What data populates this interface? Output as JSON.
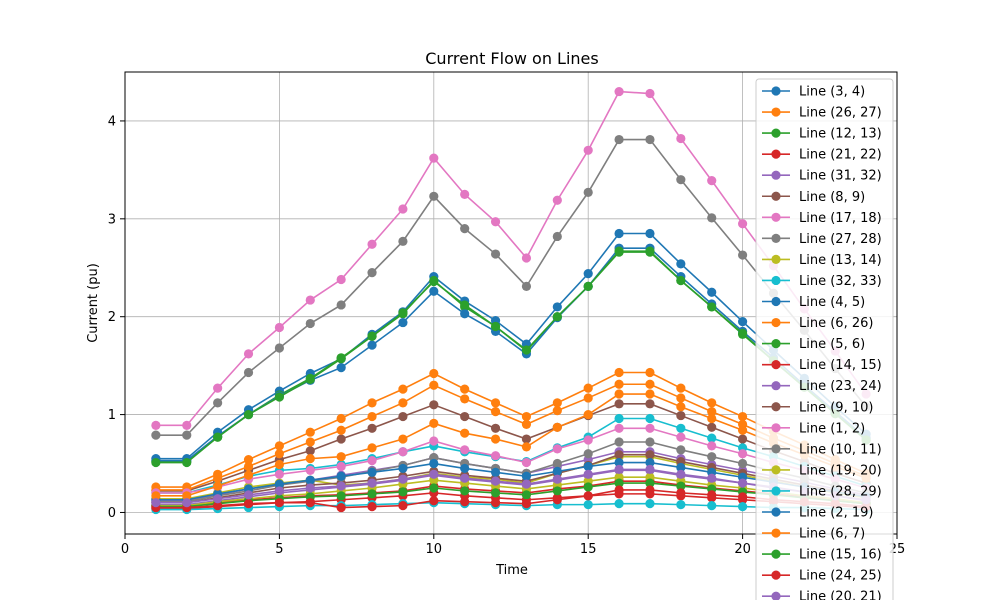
{
  "chart_data": {
    "type": "line",
    "title": "Current Flow on Lines",
    "xlabel": "Time",
    "ylabel": "Current (pu)",
    "xlim": [
      0,
      25
    ],
    "ylim": [
      -0.22,
      4.5
    ],
    "xticks": [
      0,
      5,
      10,
      15,
      20,
      25
    ],
    "yticks": [
      0,
      1,
      2,
      3,
      4
    ],
    "grid": true,
    "legend": "right",
    "x": [
      1,
      2,
      3,
      4,
      5,
      6,
      7,
      8,
      9,
      10,
      11,
      12,
      13,
      14,
      15,
      16,
      17,
      18,
      19,
      20,
      21,
      22,
      23,
      24
    ],
    "series": [
      {
        "name": "Line (3, 4)",
        "color": "#1f77b4",
        "values": [
          0.55,
          0.55,
          0.82,
          1.05,
          1.24,
          1.42,
          1.57,
          1.82,
          2.05,
          2.41,
          2.16,
          1.96,
          1.72,
          2.1,
          2.44,
          2.85,
          2.85,
          2.54,
          2.25,
          1.95,
          1.66,
          1.37,
          1.08,
          0.8
        ]
      },
      {
        "name": "Line (26, 27)",
        "color": "#ff7f0e",
        "values": [
          0.26,
          0.26,
          0.39,
          0.54,
          0.68,
          0.82,
          0.96,
          1.12,
          1.26,
          1.42,
          1.26,
          1.12,
          0.98,
          1.12,
          1.27,
          1.43,
          1.43,
          1.27,
          1.12,
          0.98,
          0.83,
          0.69,
          0.54,
          0.4
        ]
      },
      {
        "name": "Line (12, 13)",
        "color": "#2ca02c",
        "values": [
          0.52,
          0.52,
          0.77,
          1.0,
          1.2,
          1.37,
          1.58,
          1.8,
          2.03,
          2.37,
          2.1,
          1.9,
          1.65,
          2.0,
          2.31,
          2.66,
          2.66,
          2.37,
          2.1,
          1.82,
          1.55,
          1.28,
          1.01,
          0.74
        ]
      },
      {
        "name": "Line (21, 22)",
        "color": "#d62728",
        "values": [
          0.04,
          0.04,
          0.06,
          0.08,
          0.1,
          0.11,
          0.13,
          0.15,
          0.17,
          0.2,
          0.17,
          0.15,
          0.13,
          0.15,
          0.17,
          0.19,
          0.19,
          0.17,
          0.15,
          0.13,
          0.11,
          0.09,
          0.07,
          0.05
        ]
      },
      {
        "name": "Line (31, 32)",
        "color": "#9467bd",
        "values": [
          0.12,
          0.12,
          0.18,
          0.24,
          0.29,
          0.33,
          0.38,
          0.43,
          0.48,
          0.56,
          0.5,
          0.45,
          0.4,
          0.47,
          0.54,
          0.62,
          0.62,
          0.55,
          0.49,
          0.43,
          0.37,
          0.31,
          0.24,
          0.18
        ]
      },
      {
        "name": "Line (8, 9)",
        "color": "#8c564b",
        "values": [
          0.22,
          0.22,
          0.32,
          0.43,
          0.54,
          0.63,
          0.75,
          0.86,
          0.98,
          1.1,
          0.98,
          0.86,
          0.75,
          0.87,
          0.99,
          1.11,
          1.11,
          0.99,
          0.87,
          0.75,
          0.63,
          0.52,
          0.4,
          0.3
        ]
      },
      {
        "name": "Line (17, 18)",
        "color": "#e377c2",
        "values": [
          0.89,
          0.89,
          1.27,
          1.62,
          1.89,
          2.17,
          2.38,
          2.74,
          3.1,
          3.62,
          3.25,
          2.97,
          2.6,
          3.19,
          3.7,
          4.3,
          4.28,
          3.82,
          3.39,
          2.95,
          2.52,
          2.08,
          1.65,
          1.21
        ]
      },
      {
        "name": "Line (27, 28)",
        "color": "#7f7f7f",
        "values": [
          0.79,
          0.79,
          1.12,
          1.43,
          1.68,
          1.93,
          2.12,
          2.45,
          2.77,
          3.23,
          2.9,
          2.64,
          2.31,
          2.82,
          3.27,
          3.81,
          3.81,
          3.4,
          3.01,
          2.63,
          2.24,
          1.86,
          1.47,
          1.08
        ]
      },
      {
        "name": "Line (13, 14)",
        "color": "#bcbd22",
        "values": [
          0.14,
          0.14,
          0.2,
          0.26,
          0.3,
          0.33,
          0.28,
          0.3,
          0.34,
          0.4,
          0.36,
          0.34,
          0.3,
          0.4,
          0.48,
          0.57,
          0.57,
          0.5,
          0.44,
          0.38,
          0.32,
          0.26,
          0.2,
          0.15
        ]
      },
      {
        "name": "Line (32, 33)",
        "color": "#17becf",
        "values": [
          0.2,
          0.2,
          0.28,
          0.37,
          0.43,
          0.45,
          0.49,
          0.55,
          0.62,
          0.68,
          0.62,
          0.57,
          0.52,
          0.66,
          0.77,
          0.96,
          0.96,
          0.86,
          0.76,
          0.66,
          0.57,
          0.47,
          0.37,
          0.27
        ]
      },
      {
        "name": "Line (4, 5)",
        "color": "#1f77b4",
        "values": [
          0.53,
          0.53,
          0.78,
          1.0,
          1.19,
          1.35,
          1.48,
          1.71,
          1.94,
          2.26,
          2.03,
          1.85,
          1.62,
          1.99,
          2.31,
          2.7,
          2.7,
          2.41,
          2.13,
          1.85,
          1.58,
          1.3,
          1.03,
          0.76
        ]
      },
      {
        "name": "Line (6, 26)",
        "color": "#ff7f0e",
        "values": [
          0.23,
          0.23,
          0.35,
          0.47,
          0.6,
          0.72,
          0.84,
          0.98,
          1.12,
          1.3,
          1.16,
          1.03,
          0.9,
          1.04,
          1.17,
          1.31,
          1.31,
          1.17,
          1.03,
          0.9,
          0.76,
          0.63,
          0.5,
          0.37
        ]
      },
      {
        "name": "Line (5, 6)",
        "color": "#2ca02c",
        "values": [
          0.51,
          0.51,
          0.77,
          1.0,
          1.18,
          1.36,
          1.57,
          1.8,
          2.04,
          2.36,
          2.12,
          1.9,
          1.66,
          2.0,
          2.31,
          2.67,
          2.67,
          2.37,
          2.1,
          1.83,
          1.55,
          1.28,
          1.01,
          0.74
        ]
      },
      {
        "name": "Line (14, 15)",
        "color": "#d62728",
        "values": [
          0.07,
          0.07,
          0.1,
          0.13,
          0.15,
          0.17,
          0.18,
          0.2,
          0.22,
          0.27,
          0.24,
          0.22,
          0.2,
          0.24,
          0.27,
          0.32,
          0.32,
          0.28,
          0.25,
          0.22,
          0.19,
          0.16,
          0.12,
          0.09
        ]
      },
      {
        "name": "Line (23, 24)",
        "color": "#9467bd",
        "values": [
          0.08,
          0.08,
          0.12,
          0.16,
          0.2,
          0.23,
          0.26,
          0.29,
          0.33,
          0.38,
          0.34,
          0.31,
          0.28,
          0.33,
          0.38,
          0.43,
          0.43,
          0.38,
          0.34,
          0.3,
          0.25,
          0.21,
          0.17,
          0.12
        ]
      },
      {
        "name": "Line (9, 10)",
        "color": "#8c564b",
        "values": [
          0.1,
          0.1,
          0.15,
          0.2,
          0.25,
          0.28,
          0.3,
          0.33,
          0.37,
          0.42,
          0.38,
          0.35,
          0.32,
          0.4,
          0.48,
          0.59,
          0.59,
          0.52,
          0.46,
          0.4,
          0.34,
          0.28,
          0.22,
          0.16
        ]
      },
      {
        "name": "Line (1, 2)",
        "color": "#e377c2",
        "values": [
          0.2,
          0.2,
          0.26,
          0.34,
          0.39,
          0.43,
          0.47,
          0.53,
          0.62,
          0.73,
          0.64,
          0.58,
          0.51,
          0.65,
          0.74,
          0.86,
          0.86,
          0.77,
          0.68,
          0.6,
          0.51,
          0.43,
          0.34,
          0.25
        ]
      },
      {
        "name": "Line (10, 11)",
        "color": "#7f7f7f",
        "values": [
          0.11,
          0.11,
          0.17,
          0.22,
          0.28,
          0.32,
          0.36,
          0.42,
          0.48,
          0.56,
          0.5,
          0.45,
          0.4,
          0.5,
          0.6,
          0.72,
          0.72,
          0.64,
          0.57,
          0.5,
          0.42,
          0.35,
          0.27,
          0.2
        ]
      },
      {
        "name": "Line (19, 20)",
        "color": "#bcbd22",
        "values": [
          0.07,
          0.07,
          0.11,
          0.14,
          0.17,
          0.19,
          0.22,
          0.25,
          0.29,
          0.33,
          0.3,
          0.27,
          0.24,
          0.28,
          0.32,
          0.36,
          0.36,
          0.32,
          0.28,
          0.25,
          0.21,
          0.17,
          0.14,
          0.1
        ]
      },
      {
        "name": "Line (28, 29)",
        "color": "#17becf",
        "values": [
          0.03,
          0.03,
          0.04,
          0.05,
          0.06,
          0.07,
          0.07,
          0.08,
          0.09,
          0.1,
          0.09,
          0.08,
          0.07,
          0.08,
          0.08,
          0.09,
          0.09,
          0.08,
          0.07,
          0.06,
          0.05,
          0.05,
          0.04,
          0.03
        ]
      },
      {
        "name": "Line (2, 19)",
        "color": "#1f77b4",
        "values": [
          0.13,
          0.13,
          0.19,
          0.24,
          0.29,
          0.33,
          0.37,
          0.41,
          0.45,
          0.5,
          0.45,
          0.41,
          0.37,
          0.42,
          0.47,
          0.51,
          0.51,
          0.46,
          0.41,
          0.36,
          0.31,
          0.26,
          0.21,
          0.16
        ]
      },
      {
        "name": "Line (6, 7)",
        "color": "#ff7f0e",
        "values": [
          0.17,
          0.17,
          0.27,
          0.38,
          0.49,
          0.55,
          0.57,
          0.66,
          0.75,
          0.91,
          0.81,
          0.75,
          0.67,
          0.87,
          1.0,
          1.21,
          1.21,
          1.08,
          0.96,
          0.84,
          0.71,
          0.59,
          0.47,
          0.35
        ]
      },
      {
        "name": "Line (15, 16)",
        "color": "#2ca02c",
        "values": [
          0.06,
          0.06,
          0.09,
          0.12,
          0.14,
          0.16,
          0.17,
          0.19,
          0.21,
          0.25,
          0.22,
          0.2,
          0.18,
          0.22,
          0.26,
          0.3,
          0.3,
          0.27,
          0.24,
          0.21,
          0.18,
          0.15,
          0.12,
          0.09
        ]
      },
      {
        "name": "Line (24, 25)",
        "color": "#d62728",
        "values": [
          0.05,
          0.05,
          0.07,
          0.09,
          0.1,
          0.1,
          0.05,
          0.06,
          0.07,
          0.12,
          0.11,
          0.1,
          0.09,
          0.13,
          0.17,
          0.23,
          0.23,
          0.2,
          0.18,
          0.16,
          0.13,
          0.11,
          0.09,
          0.06
        ]
      },
      {
        "name": "Line (20, 21)",
        "color": "#9467bd",
        "values": [
          0.1,
          0.1,
          0.14,
          0.18,
          0.22,
          0.25,
          0.27,
          0.3,
          0.34,
          0.39,
          0.35,
          0.32,
          0.29,
          0.34,
          0.39,
          0.44,
          0.44,
          0.39,
          0.35,
          0.3,
          0.26,
          0.21,
          0.17,
          0.13
        ]
      }
    ]
  }
}
